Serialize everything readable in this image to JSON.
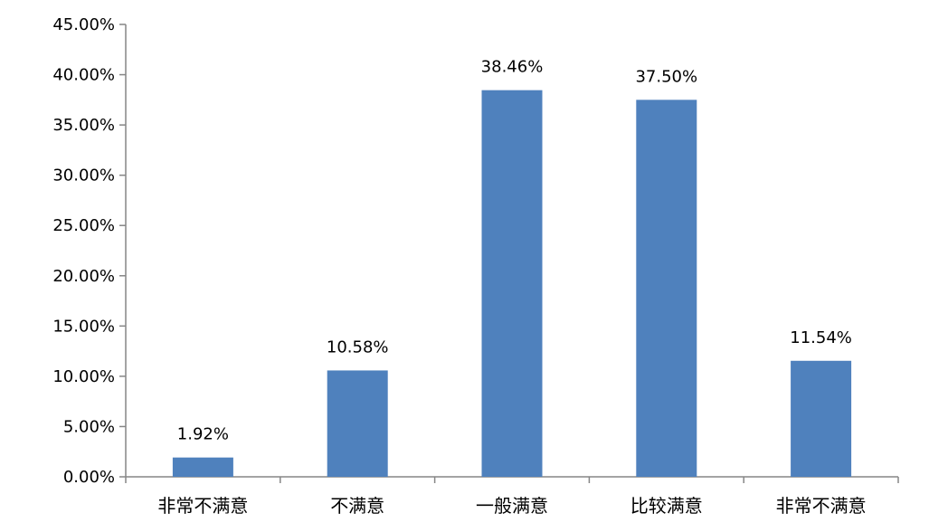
{
  "chart_data": {
    "type": "bar",
    "title": "",
    "xlabel": "",
    "ylabel": "",
    "categories": [
      "非常不满意",
      "不满意",
      "一般满意",
      "比较满意",
      "非常不满意"
    ],
    "values": [
      1.92,
      10.58,
      38.46,
      37.5,
      11.54
    ],
    "data_labels": [
      "1.92%",
      "10.58%",
      "38.46%",
      "37.50%",
      "11.54%"
    ],
    "ylim": [
      0,
      45
    ],
    "y_ticks": [
      0,
      5,
      10,
      15,
      20,
      25,
      30,
      35,
      40,
      45
    ],
    "y_tick_labels": [
      "0.00%",
      "5.00%",
      "10.00%",
      "15.00%",
      "20.00%",
      "25.00%",
      "30.00%",
      "35.00%",
      "40.00%",
      "45.00%"
    ],
    "grid": false,
    "legend": "none",
    "bar_color": "#4F81BD"
  }
}
